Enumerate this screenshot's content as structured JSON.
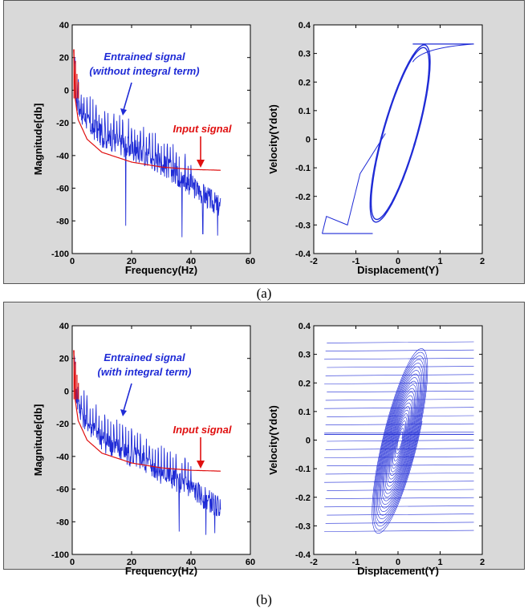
{
  "captions": [
    "(a)",
    "(b)"
  ],
  "colors": {
    "spectrum": "#1f2bd6",
    "input": "#e01010",
    "phase": "#1f2bd6",
    "panel": "#d9d9d9"
  },
  "chart_data": [
    {
      "type": "line",
      "panel": "(a)",
      "xlabel": "Frequency(Hz)",
      "ylabel": "Magnitude[db]",
      "xlim": [
        0,
        60
      ],
      "ylim": [
        -100,
        40
      ],
      "xticks": [
        0,
        20,
        40,
        60
      ],
      "yticks": [
        -100,
        -80,
        -60,
        -40,
        -20,
        0,
        20,
        40
      ],
      "series": [
        {
          "name": "Entrained signal (without integral term)",
          "annotation": [
            "Entrained signal",
            "(without integral term)"
          ],
          "color": "#1f2bd6",
          "x_range": [
            0.5,
            50
          ],
          "trend": [
            [
              0.5,
              5
            ],
            [
              2,
              -10
            ],
            [
              5,
              -20
            ],
            [
              10,
              -28
            ],
            [
              20,
              -36
            ],
            [
              30,
              -45
            ],
            [
              40,
              -58
            ],
            [
              50,
              -72
            ]
          ],
          "spikes": [
            [
              18,
              -83
            ],
            [
              37,
              -90
            ],
            [
              44,
              -88
            ],
            [
              49,
              -89
            ]
          ]
        },
        {
          "name": "Input signal",
          "annotation": [
            "Input signal"
          ],
          "color": "#e01010",
          "points": [
            [
              0.5,
              25
            ],
            [
              1,
              -5
            ],
            [
              2,
              -18
            ],
            [
              5,
              -30
            ],
            [
              10,
              -38
            ],
            [
              20,
              -44
            ],
            [
              30,
              -47
            ],
            [
              40,
              -48.5
            ],
            [
              50,
              -49
            ]
          ]
        }
      ]
    },
    {
      "type": "line",
      "panel": "(a)",
      "xlabel": "Displacement(Y)",
      "ylabel": "Velocity(Ydot)",
      "xlim": [
        -2,
        2
      ],
      "ylim": [
        -0.4,
        0.4
      ],
      "xticks": [
        -2,
        -1,
        0,
        1,
        2
      ],
      "yticks": [
        -0.4,
        -0.3,
        -0.2,
        -0.1,
        0,
        0.1,
        0.2,
        0.3,
        0.4
      ],
      "series": [
        {
          "name": "phase trajectory",
          "color": "#1f2bd6",
          "limit_cycle": {
            "center": [
              0.05,
              0.02
            ],
            "y_amp": 0.85,
            "v_amp": 0.31,
            "turns": 2
          },
          "transient": [
            [
              -1.8,
              -0.33
            ],
            [
              -1.7,
              -0.27
            ],
            [
              -1.2,
              -0.3
            ],
            [
              -0.9,
              -0.12
            ],
            [
              -0.3,
              0.02
            ]
          ],
          "saturation": 0.333
        }
      ]
    },
    {
      "type": "line",
      "panel": "(b)",
      "xlabel": "Frequency(Hz)",
      "ylabel": "Magnitude[db]",
      "xlim": [
        0,
        60
      ],
      "ylim": [
        -100,
        40
      ],
      "xticks": [
        0,
        20,
        40,
        60
      ],
      "yticks": [
        -100,
        -80,
        -60,
        -40,
        -20,
        0,
        20,
        40
      ],
      "series": [
        {
          "name": "Entrained signal (with integral term)",
          "annotation": [
            "Entrained signal",
            "(with integral term)"
          ],
          "color": "#1f2bd6",
          "x_range": [
            0.5,
            50
          ],
          "trend": [
            [
              0.5,
              5
            ],
            [
              2,
              -10
            ],
            [
              5,
              -20
            ],
            [
              10,
              -30
            ],
            [
              20,
              -40
            ],
            [
              30,
              -50
            ],
            [
              40,
              -60
            ],
            [
              50,
              -72
            ]
          ],
          "spikes": [
            [
              36,
              -86
            ],
            [
              45,
              -88
            ],
            [
              48,
              -87
            ]
          ]
        },
        {
          "name": "Input signal",
          "annotation": [
            "Input signal"
          ],
          "color": "#e01010",
          "points": [
            [
              0.5,
              25
            ],
            [
              1,
              -5
            ],
            [
              2,
              -18
            ],
            [
              5,
              -30
            ],
            [
              10,
              -38
            ],
            [
              20,
              -44
            ],
            [
              30,
              -47
            ],
            [
              40,
              -48.5
            ],
            [
              50,
              -49
            ]
          ]
        }
      ]
    },
    {
      "type": "line",
      "panel": "(b)",
      "xlabel": "Displacement(Y)",
      "ylabel": "Velocity(Ydot)",
      "xlim": [
        -2,
        2
      ],
      "ylim": [
        -0.4,
        0.4
      ],
      "xticks": [
        -2,
        -1,
        0,
        1,
        2
      ],
      "yticks": [
        -0.4,
        -0.3,
        -0.2,
        -0.1,
        0,
        0.1,
        0.2,
        0.3,
        0.4
      ],
      "series": [
        {
          "name": "phase trajectory",
          "color": "#1f2bd6",
          "spiral": {
            "center": [
              0.05,
              0.0
            ],
            "y_amp_max": 0.95,
            "v_amp_max": 0.33,
            "turns": 24
          },
          "saturation": 0.34,
          "horizontal_sweeps": {
            "v_from": -0.32,
            "v_to": 0.34,
            "count": 24,
            "x_left": -1.75,
            "x_right": 1.8
          }
        }
      ]
    }
  ]
}
